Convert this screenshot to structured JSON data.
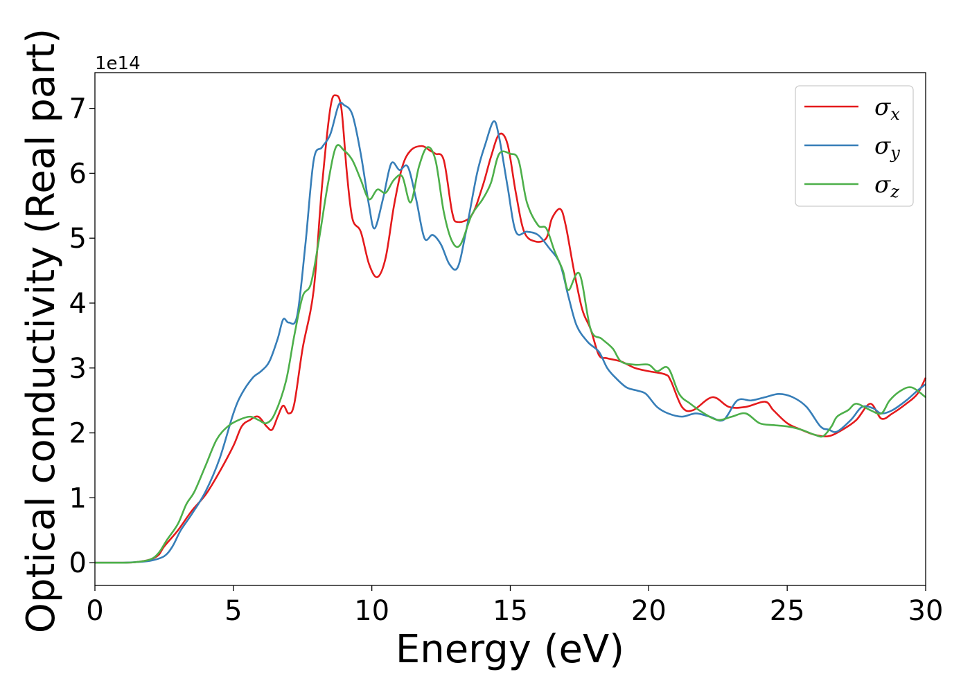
{
  "chart_data": {
    "type": "line",
    "xlabel": "Energy (eV)",
    "ylabel": "Optical conductivity (Real part)",
    "y_offset_label": "1e14",
    "y_multiplier": 100000000000000.0,
    "xlim": [
      0,
      30
    ],
    "ylim": [
      -0.35,
      7.55
    ],
    "xticks": [
      0,
      5,
      10,
      15,
      20,
      25,
      30
    ],
    "yticks": [
      0,
      1,
      2,
      3,
      4,
      5,
      6,
      7
    ],
    "grid": false,
    "legend_position": "top-right",
    "series": [
      {
        "name": "σx",
        "symbol": "σ",
        "subscript": "x",
        "color": "#e41a1c",
        "points": [
          [
            0,
            0
          ],
          [
            1,
            0
          ],
          [
            1.5,
            0.01
          ],
          [
            2,
            0.05
          ],
          [
            2.3,
            0.12
          ],
          [
            2.5,
            0.25
          ],
          [
            3,
            0.5
          ],
          [
            3.5,
            0.8
          ],
          [
            4,
            1.05
          ],
          [
            4.5,
            1.4
          ],
          [
            5,
            1.8
          ],
          [
            5.3,
            2.1
          ],
          [
            5.6,
            2.2
          ],
          [
            5.9,
            2.25
          ],
          [
            6.2,
            2.1
          ],
          [
            6.4,
            2.05
          ],
          [
            6.6,
            2.25
          ],
          [
            6.8,
            2.42
          ],
          [
            7,
            2.3
          ],
          [
            7.2,
            2.45
          ],
          [
            7.5,
            3.3
          ],
          [
            7.9,
            4.2
          ],
          [
            8.2,
            5.8
          ],
          [
            8.5,
            7.0
          ],
          [
            8.7,
            7.2
          ],
          [
            8.9,
            7.0
          ],
          [
            9.1,
            6.0
          ],
          [
            9.3,
            5.3
          ],
          [
            9.6,
            5.1
          ],
          [
            9.9,
            4.6
          ],
          [
            10.2,
            4.4
          ],
          [
            10.5,
            4.7
          ],
          [
            10.8,
            5.5
          ],
          [
            11.1,
            6.1
          ],
          [
            11.4,
            6.35
          ],
          [
            11.8,
            6.42
          ],
          [
            12.1,
            6.35
          ],
          [
            12.3,
            6.3
          ],
          [
            12.6,
            6.2
          ],
          [
            12.9,
            5.4
          ],
          [
            13.1,
            5.25
          ],
          [
            13.6,
            5.35
          ],
          [
            14,
            5.8
          ],
          [
            14.3,
            6.25
          ],
          [
            14.6,
            6.6
          ],
          [
            14.9,
            6.45
          ],
          [
            15.2,
            5.7
          ],
          [
            15.5,
            5.1
          ],
          [
            15.9,
            4.95
          ],
          [
            16.3,
            5.0
          ],
          [
            16.5,
            5.3
          ],
          [
            16.8,
            5.45
          ],
          [
            17,
            5.2
          ],
          [
            17.3,
            4.5
          ],
          [
            17.6,
            3.9
          ],
          [
            17.9,
            3.6
          ],
          [
            18.2,
            3.2
          ],
          [
            18.5,
            3.15
          ],
          [
            19,
            3.1
          ],
          [
            19.5,
            3.0
          ],
          [
            20,
            2.95
          ],
          [
            20.6,
            2.9
          ],
          [
            20.8,
            2.8
          ],
          [
            21.2,
            2.4
          ],
          [
            21.6,
            2.35
          ],
          [
            22.3,
            2.55
          ],
          [
            22.9,
            2.4
          ],
          [
            23.5,
            2.4
          ],
          [
            24.2,
            2.48
          ],
          [
            24.5,
            2.35
          ],
          [
            25,
            2.15
          ],
          [
            25.5,
            2.05
          ],
          [
            26,
            1.97
          ],
          [
            26.5,
            1.95
          ],
          [
            27,
            2.05
          ],
          [
            27.5,
            2.2
          ],
          [
            28,
            2.45
          ],
          [
            28.4,
            2.22
          ],
          [
            28.8,
            2.3
          ],
          [
            29.3,
            2.45
          ],
          [
            29.7,
            2.6
          ],
          [
            30,
            2.85
          ]
        ]
      },
      {
        "name": "σy",
        "symbol": "σ",
        "subscript": "y",
        "color": "#377eb8",
        "points": [
          [
            0,
            0
          ],
          [
            1,
            0
          ],
          [
            1.5,
            0.01
          ],
          [
            2,
            0.03
          ],
          [
            2.5,
            0.1
          ],
          [
            2.8,
            0.25
          ],
          [
            3.1,
            0.5
          ],
          [
            3.5,
            0.75
          ],
          [
            4,
            1.1
          ],
          [
            4.5,
            1.6
          ],
          [
            5,
            2.3
          ],
          [
            5.3,
            2.6
          ],
          [
            5.7,
            2.85
          ],
          [
            6,
            2.95
          ],
          [
            6.3,
            3.1
          ],
          [
            6.6,
            3.45
          ],
          [
            6.8,
            3.75
          ],
          [
            7,
            3.7
          ],
          [
            7.3,
            3.8
          ],
          [
            7.6,
            4.9
          ],
          [
            7.9,
            6.2
          ],
          [
            8.2,
            6.4
          ],
          [
            8.5,
            6.6
          ],
          [
            8.8,
            7.05
          ],
          [
            9,
            7.05
          ],
          [
            9.3,
            6.9
          ],
          [
            9.6,
            6.3
          ],
          [
            9.9,
            5.5
          ],
          [
            10.1,
            5.15
          ],
          [
            10.4,
            5.6
          ],
          [
            10.7,
            6.15
          ],
          [
            11,
            6.05
          ],
          [
            11.3,
            6.1
          ],
          [
            11.6,
            5.6
          ],
          [
            11.9,
            5.0
          ],
          [
            12.2,
            5.05
          ],
          [
            12.5,
            4.9
          ],
          [
            12.8,
            4.6
          ],
          [
            13.1,
            4.55
          ],
          [
            13.4,
            5.1
          ],
          [
            13.8,
            6.0
          ],
          [
            14.1,
            6.45
          ],
          [
            14.4,
            6.8
          ],
          [
            14.6,
            6.55
          ],
          [
            14.9,
            5.8
          ],
          [
            15.2,
            5.1
          ],
          [
            15.6,
            5.1
          ],
          [
            16,
            5.05
          ],
          [
            16.4,
            4.85
          ],
          [
            16.8,
            4.6
          ],
          [
            17.1,
            4.1
          ],
          [
            17.4,
            3.65
          ],
          [
            17.8,
            3.4
          ],
          [
            18.2,
            3.25
          ],
          [
            18.5,
            3.0
          ],
          [
            18.8,
            2.85
          ],
          [
            19.2,
            2.7
          ],
          [
            19.6,
            2.65
          ],
          [
            19.9,
            2.6
          ],
          [
            20.3,
            2.4
          ],
          [
            20.7,
            2.3
          ],
          [
            21.2,
            2.25
          ],
          [
            21.7,
            2.3
          ],
          [
            22.2,
            2.25
          ],
          [
            22.7,
            2.2
          ],
          [
            23.2,
            2.5
          ],
          [
            23.7,
            2.5
          ],
          [
            24.2,
            2.55
          ],
          [
            24.7,
            2.6
          ],
          [
            25.2,
            2.55
          ],
          [
            25.7,
            2.4
          ],
          [
            26.2,
            2.1
          ],
          [
            26.5,
            2.05
          ],
          [
            26.8,
            2.02
          ],
          [
            27.3,
            2.2
          ],
          [
            27.7,
            2.4
          ],
          [
            28.1,
            2.38
          ],
          [
            28.4,
            2.3
          ],
          [
            28.8,
            2.35
          ],
          [
            29.3,
            2.5
          ],
          [
            29.7,
            2.65
          ],
          [
            30,
            2.75
          ]
        ]
      },
      {
        "name": "σz",
        "symbol": "σ",
        "subscript": "z",
        "color": "#4daf4a",
        "points": [
          [
            0,
            0
          ],
          [
            1,
            0
          ],
          [
            1.5,
            0.01
          ],
          [
            2,
            0.05
          ],
          [
            2.3,
            0.15
          ],
          [
            2.6,
            0.35
          ],
          [
            3,
            0.6
          ],
          [
            3.3,
            0.9
          ],
          [
            3.6,
            1.1
          ],
          [
            4,
            1.5
          ],
          [
            4.4,
            1.9
          ],
          [
            4.8,
            2.1
          ],
          [
            5.2,
            2.2
          ],
          [
            5.6,
            2.25
          ],
          [
            5.9,
            2.2
          ],
          [
            6.2,
            2.15
          ],
          [
            6.5,
            2.3
          ],
          [
            6.9,
            2.8
          ],
          [
            7.2,
            3.5
          ],
          [
            7.5,
            4.1
          ],
          [
            7.8,
            4.3
          ],
          [
            8.1,
            5.0
          ],
          [
            8.4,
            5.8
          ],
          [
            8.7,
            6.4
          ],
          [
            9,
            6.35
          ],
          [
            9.3,
            6.2
          ],
          [
            9.6,
            5.9
          ],
          [
            9.9,
            5.6
          ],
          [
            10.2,
            5.75
          ],
          [
            10.5,
            5.7
          ],
          [
            10.8,
            5.9
          ],
          [
            11.1,
            5.95
          ],
          [
            11.4,
            5.55
          ],
          [
            11.7,
            6.1
          ],
          [
            12,
            6.4
          ],
          [
            12.3,
            6.2
          ],
          [
            12.6,
            5.4
          ],
          [
            12.9,
            4.95
          ],
          [
            13.2,
            4.9
          ],
          [
            13.6,
            5.35
          ],
          [
            14,
            5.6
          ],
          [
            14.3,
            5.85
          ],
          [
            14.6,
            6.3
          ],
          [
            15,
            6.3
          ],
          [
            15.3,
            6.2
          ],
          [
            15.6,
            5.55
          ],
          [
            16,
            5.2
          ],
          [
            16.3,
            5.15
          ],
          [
            16.6,
            4.8
          ],
          [
            16.9,
            4.5
          ],
          [
            17.1,
            4.2
          ],
          [
            17.5,
            4.45
          ],
          [
            17.9,
            3.6
          ],
          [
            18.3,
            3.45
          ],
          [
            18.7,
            3.3
          ],
          [
            19,
            3.1
          ],
          [
            19.5,
            3.05
          ],
          [
            20,
            3.05
          ],
          [
            20.3,
            2.95
          ],
          [
            20.7,
            3.0
          ],
          [
            21.1,
            2.6
          ],
          [
            21.5,
            2.45
          ],
          [
            22,
            2.3
          ],
          [
            22.5,
            2.2
          ],
          [
            23,
            2.25
          ],
          [
            23.5,
            2.3
          ],
          [
            24,
            2.15
          ],
          [
            24.5,
            2.12
          ],
          [
            25,
            2.1
          ],
          [
            25.5,
            2.05
          ],
          [
            26,
            1.97
          ],
          [
            26.3,
            1.95
          ],
          [
            26.6,
            2.1
          ],
          [
            26.8,
            2.25
          ],
          [
            27.2,
            2.35
          ],
          [
            27.5,
            2.45
          ],
          [
            28,
            2.35
          ],
          [
            28.4,
            2.3
          ],
          [
            28.7,
            2.5
          ],
          [
            29.1,
            2.65
          ],
          [
            29.5,
            2.7
          ],
          [
            30,
            2.55
          ]
        ]
      }
    ]
  }
}
